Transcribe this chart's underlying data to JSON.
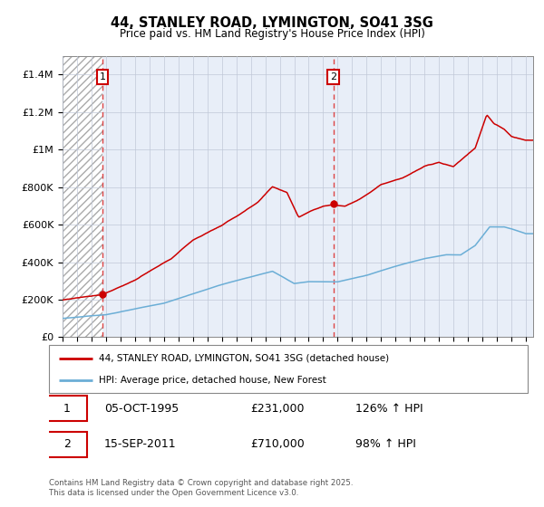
{
  "title": "44, STANLEY ROAD, LYMINGTON, SO41 3SG",
  "subtitle": "Price paid vs. HM Land Registry's House Price Index (HPI)",
  "ylim": [
    0,
    1500000
  ],
  "yticks": [
    0,
    200000,
    400000,
    600000,
    800000,
    1000000,
    1200000,
    1400000
  ],
  "ytick_labels": [
    "£0",
    "£200K",
    "£400K",
    "£600K",
    "£800K",
    "£1M",
    "£1.2M",
    "£1.4M"
  ],
  "x_start_year": 1993,
  "x_end_year": 2025,
  "sale1_year": 1995.75,
  "sale1_price": 231000,
  "sale1_date": "05-OCT-1995",
  "sale1_hpi_text": "126% ↑ HPI",
  "sale2_year": 2011.7,
  "sale2_price": 710000,
  "sale2_date": "15-SEP-2011",
  "sale2_hpi_text": "98% ↑ HPI",
  "legend_house": "44, STANLEY ROAD, LYMINGTON, SO41 3SG (detached house)",
  "legend_hpi": "HPI: Average price, detached house, New Forest",
  "house_color": "#cc0000",
  "hpi_color": "#6baed6",
  "dashed_vline_color": "#dd4444",
  "footer": "Contains HM Land Registry data © Crown copyright and database right 2025.\nThis data is licensed under the Open Government Licence v3.0.",
  "background_color": "#ffffff",
  "plot_bg_color": "#e8eef8"
}
